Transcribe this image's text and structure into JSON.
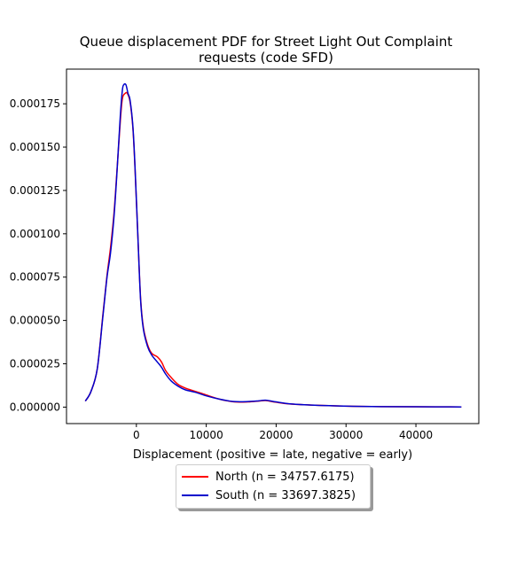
{
  "chart_data": {
    "type": "line",
    "title_line1": "Queue displacement PDF for Street Light Out Complaint",
    "title_line2": "requests (code SFD)",
    "xlabel": "Displacement (positive = late, negative = early)",
    "ylabel": "",
    "xlim": [
      -10000,
      49000
    ],
    "ylim": [
      -9.5e-06,
      0.000195
    ],
    "xticks": [
      0,
      10000,
      20000,
      30000,
      40000
    ],
    "xtick_labels": [
      "0",
      "10000",
      "20000",
      "30000",
      "40000"
    ],
    "yticks": [
      0,
      2.5e-05,
      5e-05,
      7.5e-05,
      0.0001,
      0.000125,
      0.00015,
      0.000175
    ],
    "ytick_labels": [
      "0.000000",
      "0.000025",
      "0.000050",
      "0.000075",
      "0.000100",
      "0.000125",
      "0.000150",
      "0.000175"
    ],
    "legend_position": "below-center",
    "series": [
      {
        "name": "North (n = 34757.6175)",
        "color": "#ff0000",
        "x": [
          -7300,
          -6500,
          -5600,
          -4800,
          -4200,
          -3700,
          -3200,
          -2800,
          -2300,
          -2000,
          -1600,
          -1300,
          -900,
          -500,
          -200,
          200,
          600,
          1000,
          1600,
          2200,
          3000,
          3600,
          4200,
          5000,
          6000,
          7000,
          8500,
          10000,
          12000,
          14000,
          16000,
          17500,
          18500,
          20000,
          22000,
          25000,
          28000,
          31000,
          35000,
          40000,
          46500
        ],
        "y": [
          3.5e-06,
          9e-06,
          2.2e-05,
          5.3e-05,
          7.6e-05,
          9.2e-05,
          0.000112,
          0.000135,
          0.000165,
          0.000178,
          0.000181,
          0.000181,
          0.000176,
          0.000161,
          0.000138,
          0.0001,
          6.3e-05,
          4.6e-05,
          3.6e-05,
          3.1e-05,
          2.9e-05,
          2.6e-05,
          2.1e-05,
          1.7e-05,
          1.3e-05,
          1.1e-05,
          9e-06,
          7e-06,
          4.5e-06,
          3e-06,
          3e-06,
          3.5e-06,
          3.8e-06,
          2.8e-06,
          1.8e-06,
          1.2e-06,
          8e-07,
          5e-07,
          3e-07,
          2e-07,
          1e-07
        ]
      },
      {
        "name": "South (n = 33697.3825)",
        "color": "#0000cc",
        "x": [
          -7300,
          -6500,
          -5600,
          -4800,
          -4200,
          -3700,
          -3200,
          -2800,
          -2300,
          -2000,
          -1800,
          -1500,
          -1200,
          -900,
          -500,
          -200,
          200,
          600,
          1000,
          1600,
          2200,
          3000,
          3600,
          4200,
          5000,
          6000,
          7000,
          8500,
          10000,
          12000,
          14000,
          16000,
          17500,
          18500,
          20000,
          22000,
          25000,
          28000,
          31000,
          35000,
          40000,
          46500
        ],
        "y": [
          3.5e-06,
          9e-06,
          2.2e-05,
          5.2e-05,
          7.5e-05,
          8.9e-05,
          0.00011,
          0.000134,
          0.000168,
          0.000183,
          0.000186,
          0.000186,
          0.000181,
          0.000177,
          0.000162,
          0.000139,
          0.0001,
          6.2e-05,
          4.5e-05,
          3.5e-05,
          3e-05,
          2.6e-05,
          2.3e-05,
          1.9e-05,
          1.5e-05,
          1.2e-05,
          1e-05,
          8.5e-06,
          6.5e-06,
          4.5e-06,
          3.2e-06,
          3.2e-06,
          3.6e-06,
          4e-06,
          3e-06,
          1.9e-06,
          1.2e-06,
          8e-07,
          5e-07,
          3e-07,
          2e-07,
          1e-07
        ]
      }
    ]
  }
}
